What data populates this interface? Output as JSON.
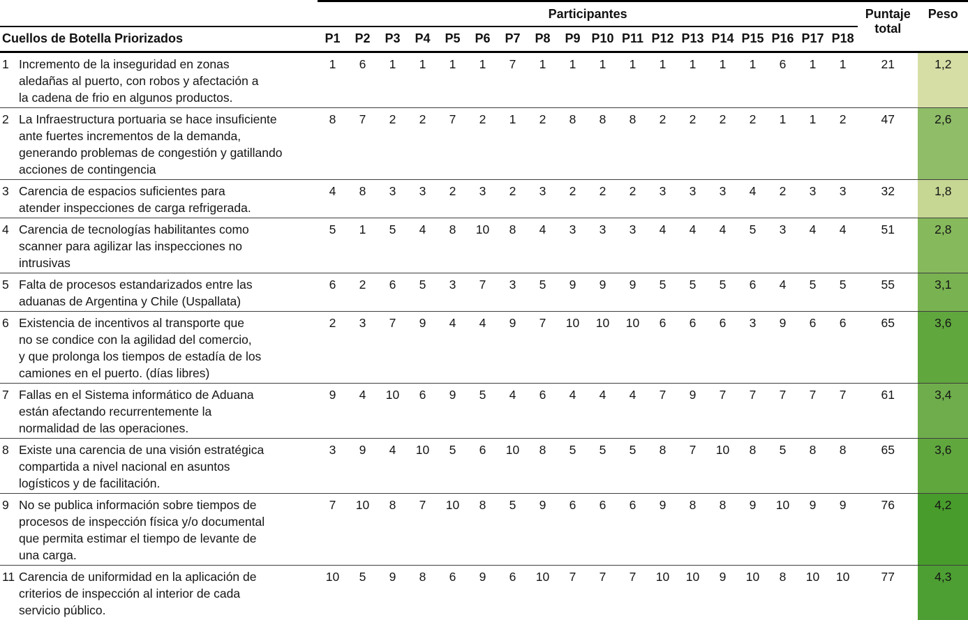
{
  "header": {
    "group": "Participantes",
    "desc_col": "Cuellos de Botella Priorizados",
    "total_col": "Puntaje\ntotal",
    "peso_col": "Peso",
    "participants": [
      "P1",
      "P2",
      "P3",
      "P4",
      "P5",
      "P6",
      "P7",
      "P8",
      "P9",
      "P10",
      "P11",
      "P12",
      "P13",
      "P14",
      "P15",
      "P16",
      "P17",
      "P18"
    ]
  },
  "colors": {
    "header_rule": "#000000",
    "row_divider": "#3d3d3d",
    "bottom_rule": "#4e4e4e"
  },
  "rows": [
    {
      "num": "1",
      "desc": "Incremento de la inseguridad en zonas\naledañas al puerto, con robos y afectación a\nla cadena de frio en algunos productos.",
      "scores": [
        "1",
        "6",
        "1",
        "1",
        "1",
        "1",
        "7",
        "1",
        "1",
        "1",
        "1",
        "1",
        "1",
        "1",
        "1",
        "6",
        "1",
        "1"
      ],
      "total": "21",
      "peso": "1,2",
      "peso_color": "#d6dea6"
    },
    {
      "num": "2",
      "desc": "La Infraestructura portuaria se hace insuficiente\nante fuertes incrementos de la demanda,\ngenerando problemas de congestión y gatillando\nacciones de contingencia",
      "scores": [
        "8",
        "7",
        "2",
        "2",
        "7",
        "2",
        "1",
        "2",
        "8",
        "8",
        "8",
        "2",
        "2",
        "2",
        "2",
        "1",
        "1",
        "2"
      ],
      "total": "47",
      "peso": "2,6",
      "peso_color": "#8fbd68"
    },
    {
      "num": "3",
      "desc": "Carencia de espacios suficientes para\natender inspecciones de carga refrigerada.",
      "scores": [
        "4",
        "8",
        "3",
        "3",
        "2",
        "3",
        "2",
        "3",
        "2",
        "2",
        "2",
        "3",
        "3",
        "3",
        "4",
        "2",
        "3",
        "3"
      ],
      "total": "32",
      "peso": "1,8",
      "peso_color": "#c6d693"
    },
    {
      "num": "4",
      "desc": "Carencia de tecnologías habilitantes como\nscanner para agilizar las inspecciones no\nintrusivas",
      "scores": [
        "5",
        "1",
        "5",
        "4",
        "8",
        "10",
        "8",
        "4",
        "3",
        "3",
        "3",
        "4",
        "4",
        "4",
        "5",
        "3",
        "4",
        "4"
      ],
      "total": "51",
      "peso": "2,8",
      "peso_color": "#86b95c"
    },
    {
      "num": "5",
      "desc": "Falta de procesos estandarizados entre las\naduanas de Argentina y Chile (Uspallata)",
      "scores": [
        "6",
        "2",
        "6",
        "5",
        "3",
        "7",
        "3",
        "5",
        "9",
        "9",
        "9",
        "5",
        "5",
        "5",
        "6",
        "4",
        "5",
        "5"
      ],
      "total": "55",
      "peso": "3,1",
      "peso_color": "#79b251"
    },
    {
      "num": "6",
      "desc": "Existencia de incentivos al transporte que\nno se condice con la agilidad del comercio,\ny que prolonga los tiempos de estadía de los\ncamiones en el puerto. (días libres)",
      "scores": [
        "2",
        "3",
        "7",
        "9",
        "4",
        "4",
        "9",
        "7",
        "10",
        "10",
        "10",
        "6",
        "6",
        "6",
        "3",
        "9",
        "6",
        "6"
      ],
      "total": "65",
      "peso": "3,6",
      "peso_color": "#60a73e"
    },
    {
      "num": "7",
      "desc": "Fallas en el Sistema informático de Aduana\nestán afectando recurrentemente la\nnormalidad de las operaciones.",
      "scores": [
        "9",
        "4",
        "10",
        "6",
        "9",
        "5",
        "4",
        "6",
        "4",
        "4",
        "4",
        "7",
        "9",
        "7",
        "7",
        "7",
        "7",
        "7"
      ],
      "total": "61",
      "peso": "3,4",
      "peso_color": "#6fad4c"
    },
    {
      "num": "8",
      "desc": "Existe una carencia de una visión estratégica\ncompartida a nivel nacional en asuntos\nlogísticos y de facilitación.",
      "scores": [
        "3",
        "9",
        "4",
        "10",
        "5",
        "6",
        "10",
        "8",
        "5",
        "5",
        "5",
        "8",
        "7",
        "10",
        "8",
        "5",
        "8",
        "8"
      ],
      "total": "65",
      "peso": "3,6",
      "peso_color": "#60a73e"
    },
    {
      "num": "9",
      "desc": "No se publica información sobre tiempos de\nprocesos de inspección física y/o documental\nque permita estimar el tiempo de levante de\nuna carga.",
      "scores": [
        "7",
        "10",
        "8",
        "7",
        "10",
        "8",
        "5",
        "9",
        "6",
        "6",
        "6",
        "9",
        "8",
        "8",
        "9",
        "10",
        "9",
        "9"
      ],
      "total": "76",
      "peso": "4,2",
      "peso_color": "#489c2c"
    },
    {
      "num": "11",
      "desc": "Carencia de uniformidad en la aplicación de\ncriterios de inspección al interior de cada\nservicio público.",
      "scores": [
        "10",
        "5",
        "9",
        "8",
        "6",
        "9",
        "6",
        "10",
        "7",
        "7",
        "7",
        "10",
        "10",
        "9",
        "10",
        "8",
        "10",
        "10"
      ],
      "total": "77",
      "peso": "4,3",
      "peso_color": "#4d9f33"
    }
  ]
}
